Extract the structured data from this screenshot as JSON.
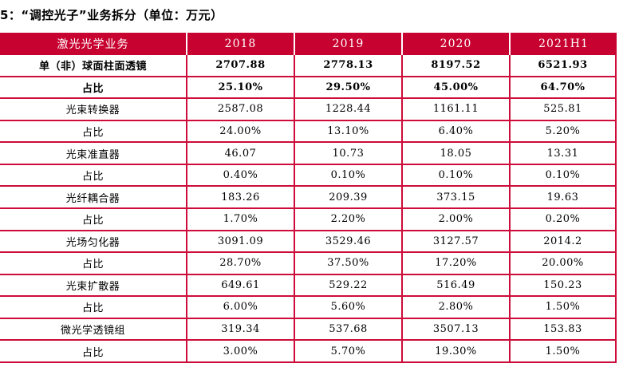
{
  "title": "5：“调控光子”业务拆分（单位：万元）",
  "colors": {
    "header_background": "#c80230",
    "header_text": "#ffffff",
    "grid_line": "#cd0c3a",
    "body_text": "#000000",
    "page_background": "#ffffff"
  },
  "table": {
    "columns": [
      "激光光学业务",
      "2018",
      "2019",
      "2020",
      "2021H1"
    ],
    "rows": [
      {
        "label": "单（非）球面柱面透镜",
        "values": [
          "2707.88",
          "2778.13",
          "8197.52",
          "6521.93"
        ],
        "bold": true
      },
      {
        "label": "占比",
        "values": [
          "25.10%",
          "29.50%",
          "45.00%",
          "64.70%"
        ],
        "bold": true
      },
      {
        "label": "光束转换器",
        "values": [
          "2587.08",
          "1228.44",
          "1161.11",
          "525.81"
        ],
        "bold": false
      },
      {
        "label": "占比",
        "values": [
          "24.00%",
          "13.10%",
          "6.40%",
          "5.20%"
        ],
        "bold": false
      },
      {
        "label": "光束准直器",
        "values": [
          "46.07",
          "10.73",
          "18.05",
          "13.31"
        ],
        "bold": false
      },
      {
        "label": "占比",
        "values": [
          "0.40%",
          "0.10%",
          "0.10%",
          "0.10%"
        ],
        "bold": false
      },
      {
        "label": "光纤耦合器",
        "values": [
          "183.26",
          "209.39",
          "373.15",
          "19.63"
        ],
        "bold": false
      },
      {
        "label": "占比",
        "values": [
          "1.70%",
          "2.20%",
          "2.00%",
          "0.20%"
        ],
        "bold": false
      },
      {
        "label": "光场匀化器",
        "values": [
          "3091.09",
          "3529.46",
          "3127.57",
          "2014.2"
        ],
        "bold": false
      },
      {
        "label": "占比",
        "values": [
          "28.70%",
          "37.50%",
          "17.20%",
          "20.00%"
        ],
        "bold": false
      },
      {
        "label": "光束扩散器",
        "values": [
          "649.61",
          "529.22",
          "516.49",
          "150.23"
        ],
        "bold": false
      },
      {
        "label": "占比",
        "values": [
          "6.00%",
          "5.60%",
          "2.80%",
          "1.50%"
        ],
        "bold": false
      },
      {
        "label": "微光学透镜组",
        "values": [
          "319.34",
          "537.68",
          "3507.13",
          "153.83"
        ],
        "bold": false
      },
      {
        "label": "占比",
        "values": [
          "3.00%",
          "5.70%",
          "19.30%",
          "1.50%"
        ],
        "bold": false
      }
    ]
  }
}
